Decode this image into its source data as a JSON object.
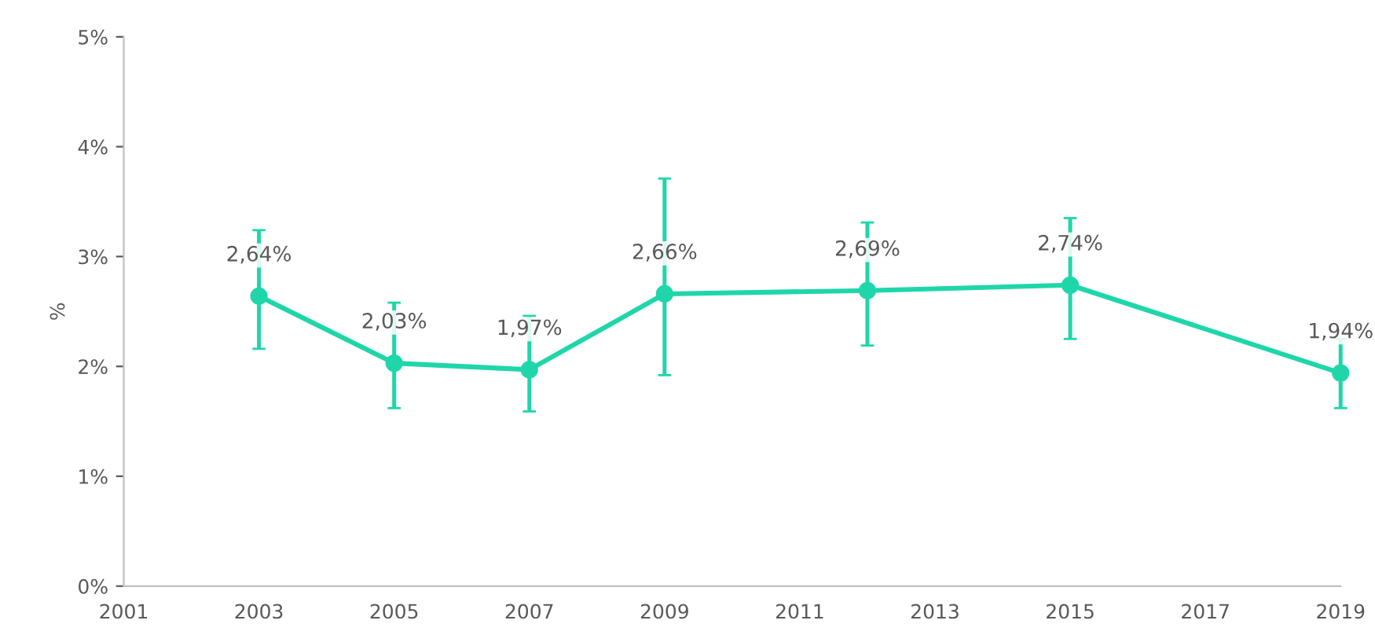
{
  "chart_data": {
    "type": "line",
    "ylabel": "%",
    "x": [
      2003,
      2005,
      2007,
      2009,
      2012,
      2015,
      2019
    ],
    "series": [
      {
        "color": "#1fd6aa",
        "values": [
          2.64,
          2.03,
          1.97,
          2.66,
          2.69,
          2.74,
          1.94
        ],
        "errors": [
          [
            2.16,
            3.24
          ],
          [
            1.62,
            2.58
          ],
          [
            1.59,
            2.46
          ],
          [
            1.92,
            3.71
          ],
          [
            2.19,
            3.31
          ],
          [
            2.25,
            3.35
          ],
          [
            1.62,
            2.25
          ]
        ],
        "value_labels": [
          "2,64%",
          "2,03%",
          "1,97%",
          "2,66%",
          "2,69%",
          "2,74%",
          "1,94%"
        ]
      }
    ],
    "xlim": [
      2001,
      2019
    ],
    "xticks": [
      2001,
      2003,
      2005,
      2007,
      2009,
      2011,
      2013,
      2015,
      2017,
      2019
    ],
    "ylim": [
      0,
      5
    ],
    "yticks": [
      {
        "value": 0,
        "label": "0%"
      },
      {
        "value": 1,
        "label": "1%"
      },
      {
        "value": 2,
        "label": "2%"
      },
      {
        "value": 3,
        "label": "3%"
      },
      {
        "value": 4,
        "label": "4%"
      },
      {
        "value": 5,
        "label": "5%"
      }
    ],
    "grid": false,
    "marker": "circle",
    "line_style": "solid"
  }
}
